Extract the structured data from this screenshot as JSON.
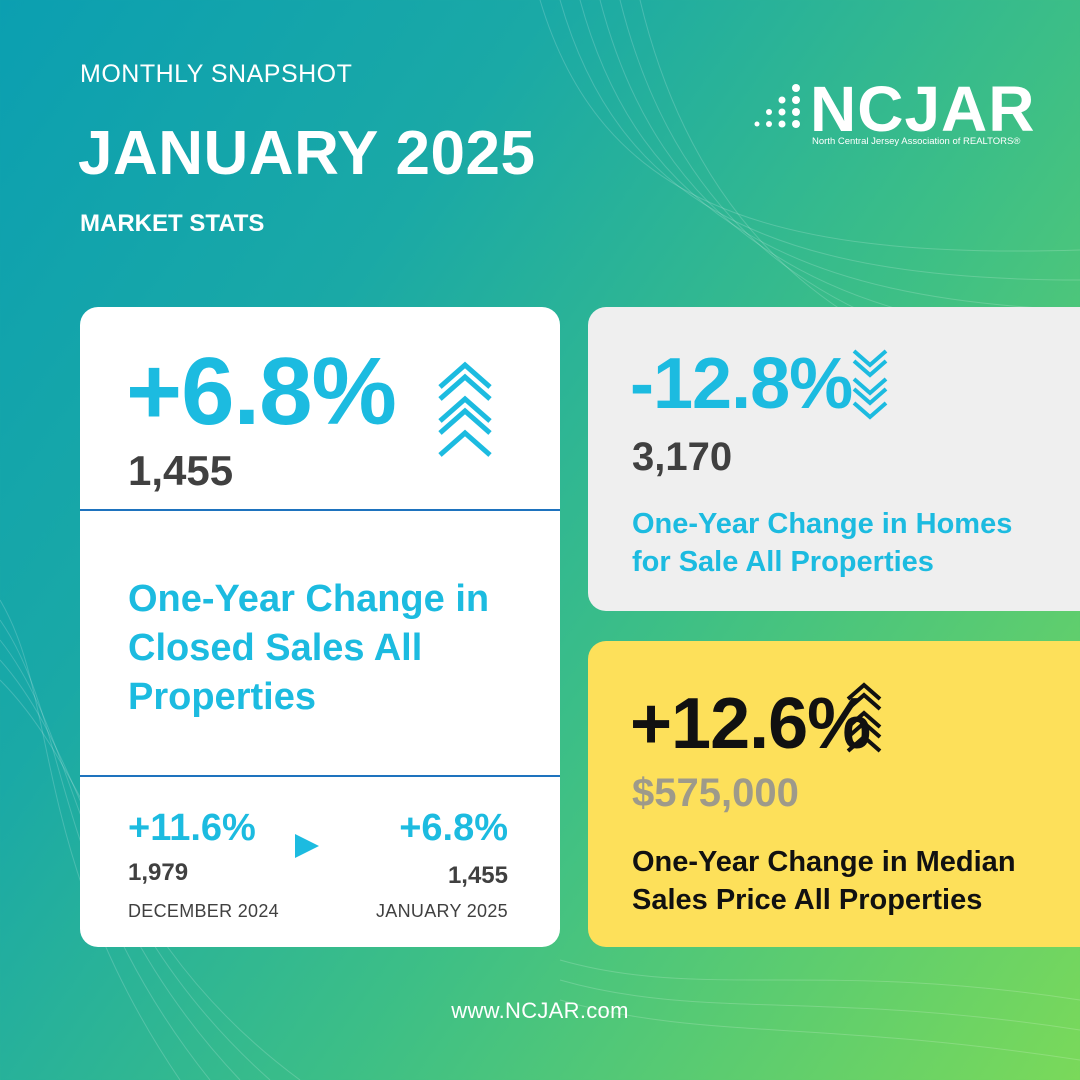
{
  "header": {
    "eyebrow": "MONTHLY SNAPSHOT",
    "title": "JANUARY 2025",
    "subtitle": "MARKET STATS"
  },
  "logo": {
    "name": "NCJAR",
    "tagline": "North Central Jersey Association of REALTORS®"
  },
  "closed_sales": {
    "change": "+6.8%",
    "count": "1,455",
    "description": "One-Year Change in Closed Sales All Properties",
    "trend_icon": "chevrons-up-icon",
    "previous": {
      "change": "+11.6%",
      "count": "1,979",
      "period": "DECEMBER  2024"
    },
    "current": {
      "change": "+6.8%",
      "count": "1,455",
      "period": "JANUARY 2025"
    }
  },
  "homes_for_sale": {
    "change": "-12.8%",
    "count": "3,170",
    "description": "One-Year Change in Homes for Sale All Properties",
    "trend_icon": "chevrons-down-icon"
  },
  "median_price": {
    "change": "+12.6%",
    "price": "$575,000",
    "description": "One-Year Change in Median Sales Price All Properties",
    "trend_icon": "chevrons-up-icon"
  },
  "footer": {
    "url": "www.NCJAR.com"
  },
  "colors": {
    "accent_cyan": "#1cbbe0",
    "divider_blue": "#1e73be",
    "card_yellow": "#fde05a",
    "card_gray": "#efefef"
  }
}
